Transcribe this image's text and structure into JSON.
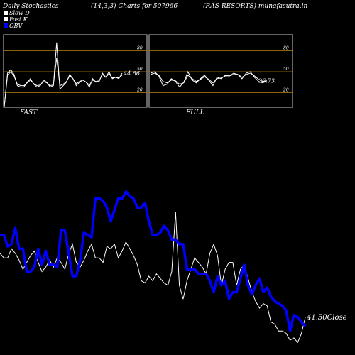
{
  "header": {
    "left": "Daily Stochastics",
    "center": "(14,3,3) Charts for 507966",
    "right": "(RAS RESORTS) munafasutra.in"
  },
  "legend": [
    {
      "label": "Slow  D",
      "color": "#ffffff"
    },
    {
      "label": "Fast K",
      "color": "#ffffff"
    },
    {
      "label": "OBV",
      "color": "#0000ff"
    }
  ],
  "chart_data": [
    {
      "type": "line",
      "name": "fast-stochastics",
      "panel_label": "FAST",
      "ylim": [
        0,
        100
      ],
      "ticks": [
        20,
        50,
        80
      ],
      "last_value": "44.66",
      "series": [
        {
          "color": "#ffffff",
          "values": [
            0,
            48,
            53,
            46,
            30,
            28,
            28,
            35,
            40,
            32,
            28,
            30,
            38,
            35,
            28,
            30,
            92,
            25,
            30,
            35,
            46,
            40,
            30,
            35,
            38,
            35,
            28,
            40,
            35,
            36,
            48,
            42,
            50,
            40,
            42,
            40,
            48
          ]
        },
        {
          "color": "#ffffff",
          "values": [
            0,
            45,
            50,
            44,
            32,
            30,
            30,
            34,
            38,
            33,
            30,
            31,
            36,
            34,
            30,
            31,
            70,
            30,
            32,
            36,
            44,
            40,
            33,
            36,
            38,
            35,
            31,
            38,
            36,
            37,
            46,
            42,
            47,
            41,
            42,
            41,
            45
          ]
        }
      ]
    },
    {
      "type": "line",
      "name": "full-stochastics",
      "panel_label": "FULL",
      "ylim": [
        0,
        100
      ],
      "ticks": [
        20,
        50,
        80
      ],
      "last_value": "36.73",
      "series": [
        {
          "color": "#ffffff",
          "values": [
            48,
            50,
            44,
            30,
            32,
            40,
            36,
            28,
            35,
            50,
            38,
            34,
            40,
            45,
            38,
            30,
            42,
            40,
            45,
            44,
            48,
            46,
            40,
            48,
            50,
            42,
            36,
            34,
            37
          ]
        },
        {
          "color": "#ffffff",
          "values": [
            46,
            48,
            45,
            36,
            34,
            38,
            37,
            32,
            34,
            45,
            40,
            36,
            39,
            43,
            39,
            34,
            40,
            41,
            44,
            44,
            46,
            46,
            42,
            46,
            48,
            44,
            39,
            36,
            37
          ]
        }
      ]
    },
    {
      "type": "line",
      "name": "price-obv",
      "ylim": [
        0,
        100
      ],
      "close_label": "41.50Close",
      "series": [
        {
          "name": "OBV",
          "color": "#0000ff",
          "values": [
            50,
            50,
            45,
            46,
            53,
            44,
            44,
            34,
            34,
            36,
            44,
            37,
            43,
            37,
            37,
            36,
            52,
            52,
            42,
            32,
            32,
            39,
            51,
            50,
            49,
            66,
            66,
            65,
            62,
            56,
            61,
            66,
            66,
            69,
            67,
            66,
            62,
            62,
            64,
            56,
            50,
            50,
            51,
            54,
            52,
            48,
            48,
            46,
            46,
            35,
            35,
            35,
            33,
            33,
            33,
            30,
            25,
            32,
            28,
            30,
            22,
            25,
            25,
            31,
            37,
            28,
            24,
            28,
            31,
            25,
            27,
            23,
            21,
            20,
            19,
            17,
            8,
            15,
            14,
            12,
            10
          ]
        },
        {
          "name": "price",
          "color": "#ffffff",
          "values": [
            42,
            40,
            40,
            44,
            42,
            39,
            35,
            38,
            41,
            43,
            38,
            34,
            36,
            39,
            36,
            40,
            38,
            35,
            42,
            46,
            38,
            36,
            39,
            43,
            46,
            40,
            40,
            38,
            45,
            44,
            46,
            40,
            43,
            47,
            44,
            41,
            37,
            30,
            29,
            32,
            30,
            33,
            31,
            29,
            28,
            34,
            60,
            28,
            22,
            30,
            35,
            40,
            38,
            36,
            33,
            42,
            46,
            41,
            28,
            35,
            38,
            38,
            28,
            35,
            37,
            31,
            25,
            21,
            18,
            20,
            19,
            12,
            11,
            8,
            8,
            7,
            4,
            5,
            3,
            7,
            14
          ]
        }
      ]
    }
  ]
}
